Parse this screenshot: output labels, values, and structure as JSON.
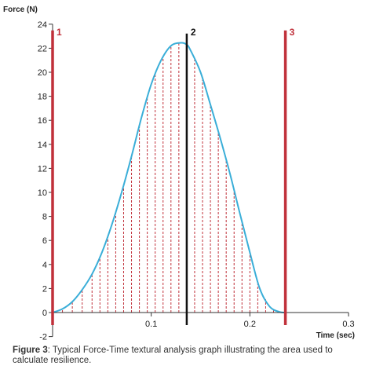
{
  "chart_data": {
    "type": "line",
    "ylabel": "Force (N)",
    "xlabel": "Time (sec)",
    "xlim": [
      0,
      0.3
    ],
    "ylim": [
      -2,
      24
    ],
    "x_ticks": [
      {
        "value": 0.1,
        "label": "0.1"
      },
      {
        "value": 0.2,
        "label": "0.2"
      },
      {
        "value": 0.3,
        "label": "0.3"
      }
    ],
    "y_ticks": [
      {
        "value": -2,
        "label": "-2"
      },
      {
        "value": 0,
        "label": "0"
      },
      {
        "value": 2,
        "label": "2"
      },
      {
        "value": 4,
        "label": "4"
      },
      {
        "value": 6,
        "label": "6"
      },
      {
        "value": 8,
        "label": "8"
      },
      {
        "value": 10,
        "label": "10"
      },
      {
        "value": 12,
        "label": "12"
      },
      {
        "value": 14,
        "label": "14"
      },
      {
        "value": 16,
        "label": "16"
      },
      {
        "value": 18,
        "label": "18"
      },
      {
        "value": 20,
        "label": "20"
      },
      {
        "value": 22,
        "label": "22"
      },
      {
        "value": 24,
        "label": "24"
      }
    ],
    "series": [
      {
        "color": "#3aaed8",
        "x": [
          0,
          0.01,
          0.02,
          0.03,
          0.04,
          0.05,
          0.06,
          0.07,
          0.08,
          0.09,
          0.1,
          0.11,
          0.12,
          0.13,
          0.136,
          0.14,
          0.15,
          0.16,
          0.17,
          0.18,
          0.19,
          0.2,
          0.21,
          0.22,
          0.23,
          0.236
        ],
        "y": [
          0,
          0.3,
          0.9,
          1.9,
          3.2,
          5.0,
          7.3,
          10.0,
          13.0,
          16.2,
          19.0,
          21.0,
          22.2,
          22.45,
          22.3,
          21.8,
          20.0,
          17.3,
          14.5,
          11.5,
          8.2,
          5.0,
          2.0,
          0.5,
          0.05,
          0
        ]
      }
    ],
    "hatch": {
      "color": "#c0303a",
      "x": [
        0.01,
        0.02,
        0.03,
        0.04,
        0.048,
        0.056,
        0.064,
        0.072,
        0.08,
        0.088,
        0.096,
        0.104,
        0.112,
        0.12,
        0.128,
        0.144,
        0.152,
        0.16,
        0.168,
        0.176,
        0.184,
        0.192,
        0.2,
        0.208,
        0.216,
        0.224
      ]
    },
    "markers": [
      {
        "label": "1",
        "x": 0,
        "color": "#c0303a"
      },
      {
        "label": "2",
        "x": 0.136,
        "color": "#111111"
      },
      {
        "label": "3",
        "x": 0.236,
        "color": "#c0303a"
      }
    ]
  },
  "caption": {
    "figure_label": "Figure 3",
    "text": ": Typical Force-Time textural analysis graph illustrating the area used to calculate resilience."
  }
}
